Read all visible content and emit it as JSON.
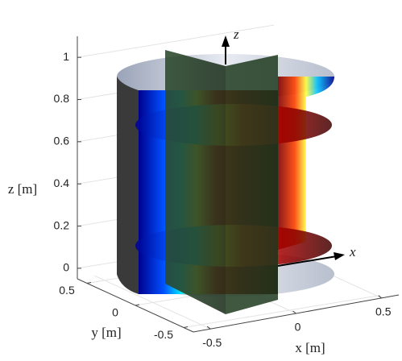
{
  "chart_data": {
    "type": "field3d",
    "xlabel": "x [m]",
    "ylabel": "y [m]",
    "zlabel": "z [m]",
    "xlim": [
      -0.6,
      0.6
    ],
    "ylim": [
      -0.6,
      0.6
    ],
    "zlim": [
      -0.05,
      1.1
    ],
    "xticks": [
      -0.5,
      0,
      0.5
    ],
    "yticks": [
      -0.5,
      0,
      0.5
    ],
    "zticks": [
      0,
      0.2,
      0.4,
      0.6,
      0.8,
      1
    ],
    "grid": true,
    "annotations": [
      "z",
      "x"
    ]
  }
}
